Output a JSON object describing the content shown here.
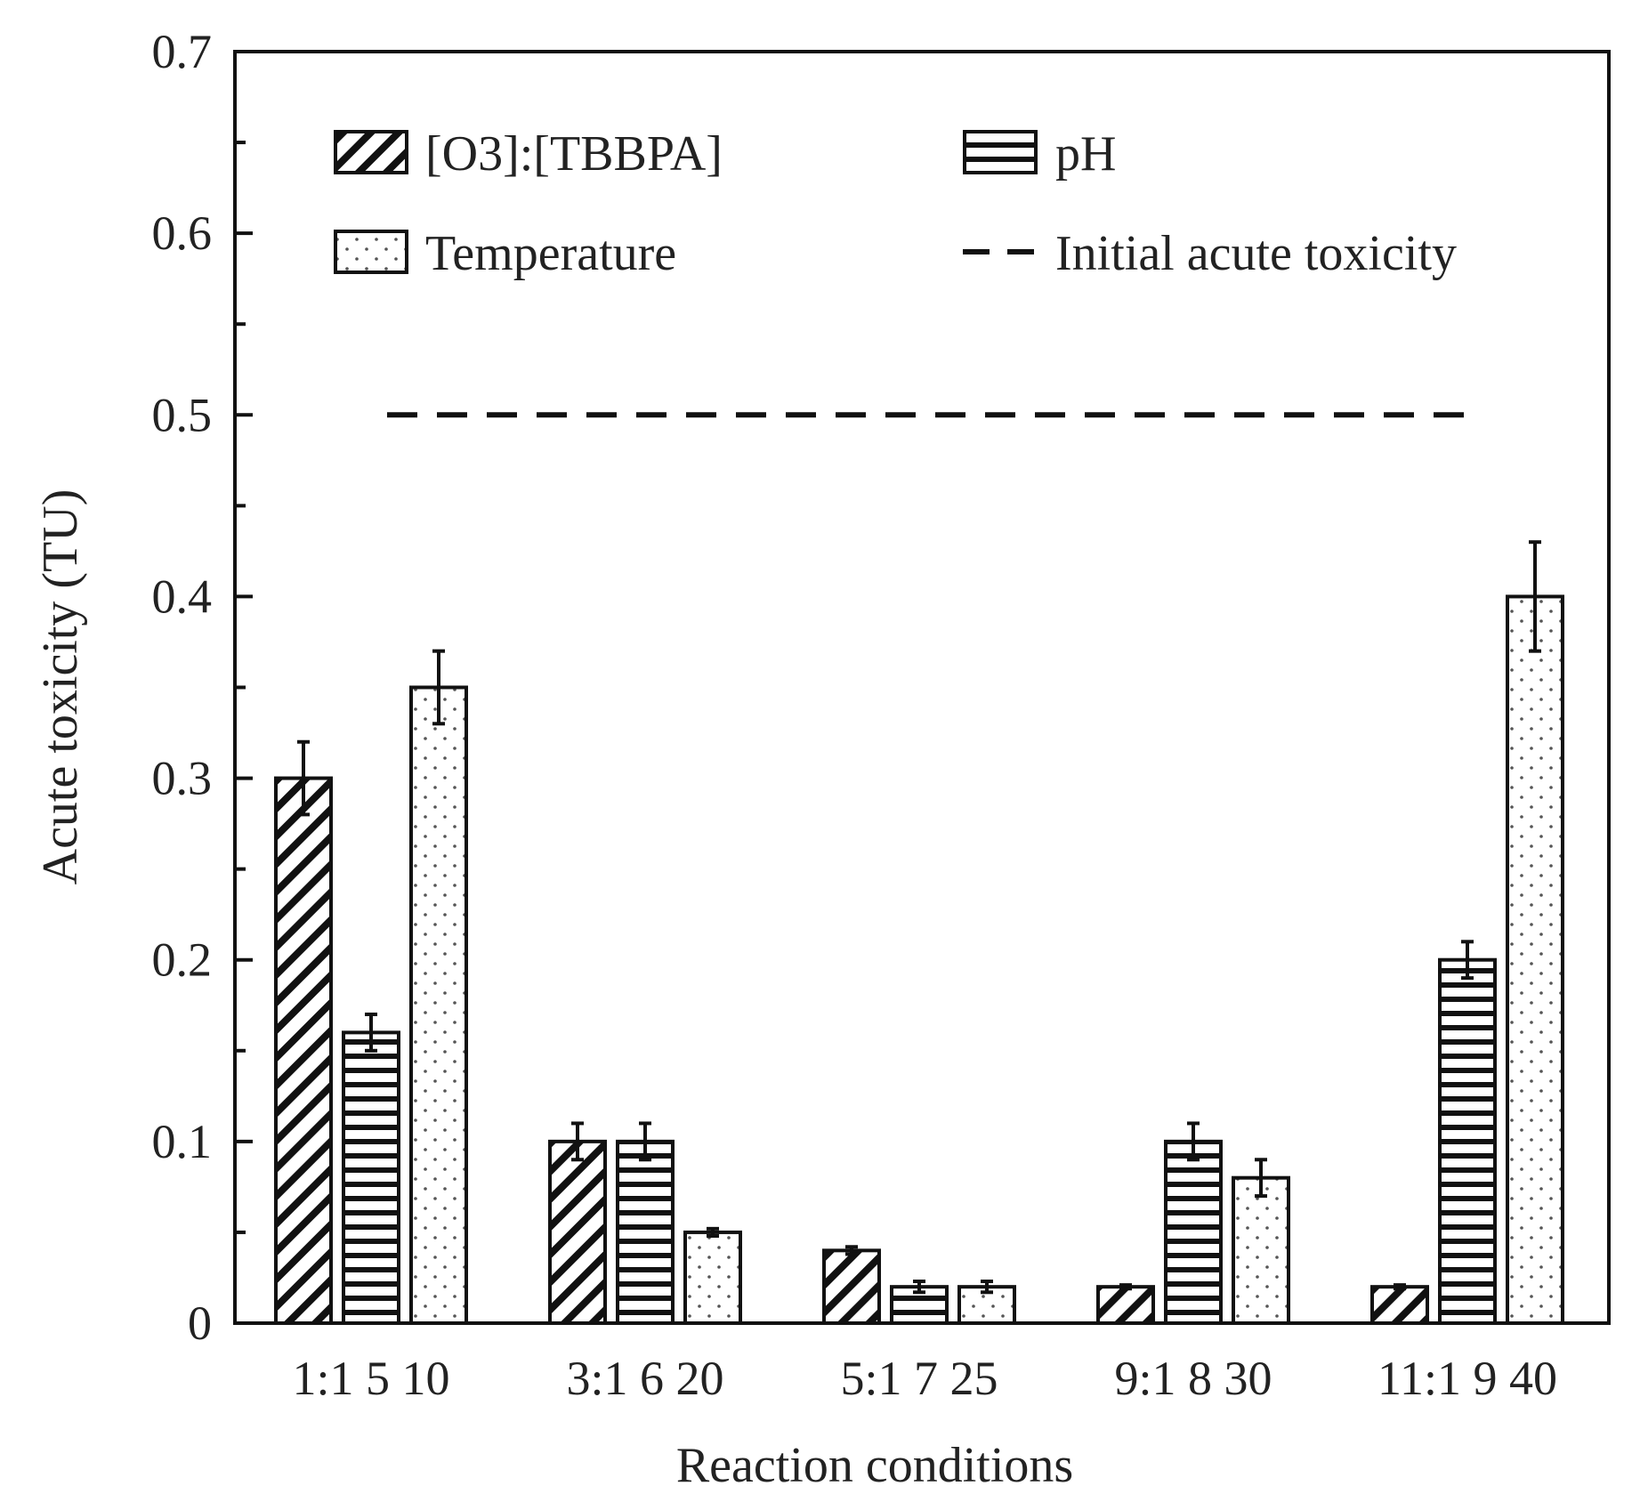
{
  "chart_data": {
    "type": "bar",
    "title": "",
    "xlabel": "Reaction conditions",
    "ylabel": "Acute toxicity (TU)",
    "ylim": [
      0,
      0.7
    ],
    "yticks": [
      "0",
      "0.1",
      "0.2",
      "0.3",
      "0.4",
      "0.5",
      "0.6",
      "0.7"
    ],
    "groups": [
      {
        "labels": [
          "1:1",
          "5",
          "10"
        ]
      },
      {
        "labels": [
          "3:1",
          "6",
          "20"
        ]
      },
      {
        "labels": [
          "5:1",
          "7",
          "25"
        ]
      },
      {
        "labels": [
          "9:1",
          "8",
          "30"
        ]
      },
      {
        "labels": [
          "11:1",
          "9",
          "40"
        ]
      }
    ],
    "series": [
      {
        "name": "[O3]:[TBBPA]",
        "pattern": "diagonal-hatch",
        "values": [
          0.3,
          0.1,
          0.04,
          0.02,
          0.02
        ],
        "errors": [
          0.02,
          0.01,
          0.002,
          0.001,
          0.001
        ]
      },
      {
        "name": "pH",
        "pattern": "horizontal-stripes",
        "values": [
          0.16,
          0.1,
          0.02,
          0.1,
          0.2
        ],
        "errors": [
          0.01,
          0.01,
          0.003,
          0.01,
          0.01
        ]
      },
      {
        "name": "Temperature",
        "pattern": "dots",
        "values": [
          0.35,
          0.05,
          0.02,
          0.08,
          0.4
        ],
        "errors": [
          0.02,
          0.002,
          0.003,
          0.01,
          0.03
        ]
      }
    ],
    "reference_line": {
      "name": "Initial acute toxicity",
      "value": 0.5,
      "style": "dashed"
    },
    "legend_position": "top",
    "grid": false,
    "colors": {
      "ink": "#111111",
      "background": "#ffffff"
    }
  }
}
